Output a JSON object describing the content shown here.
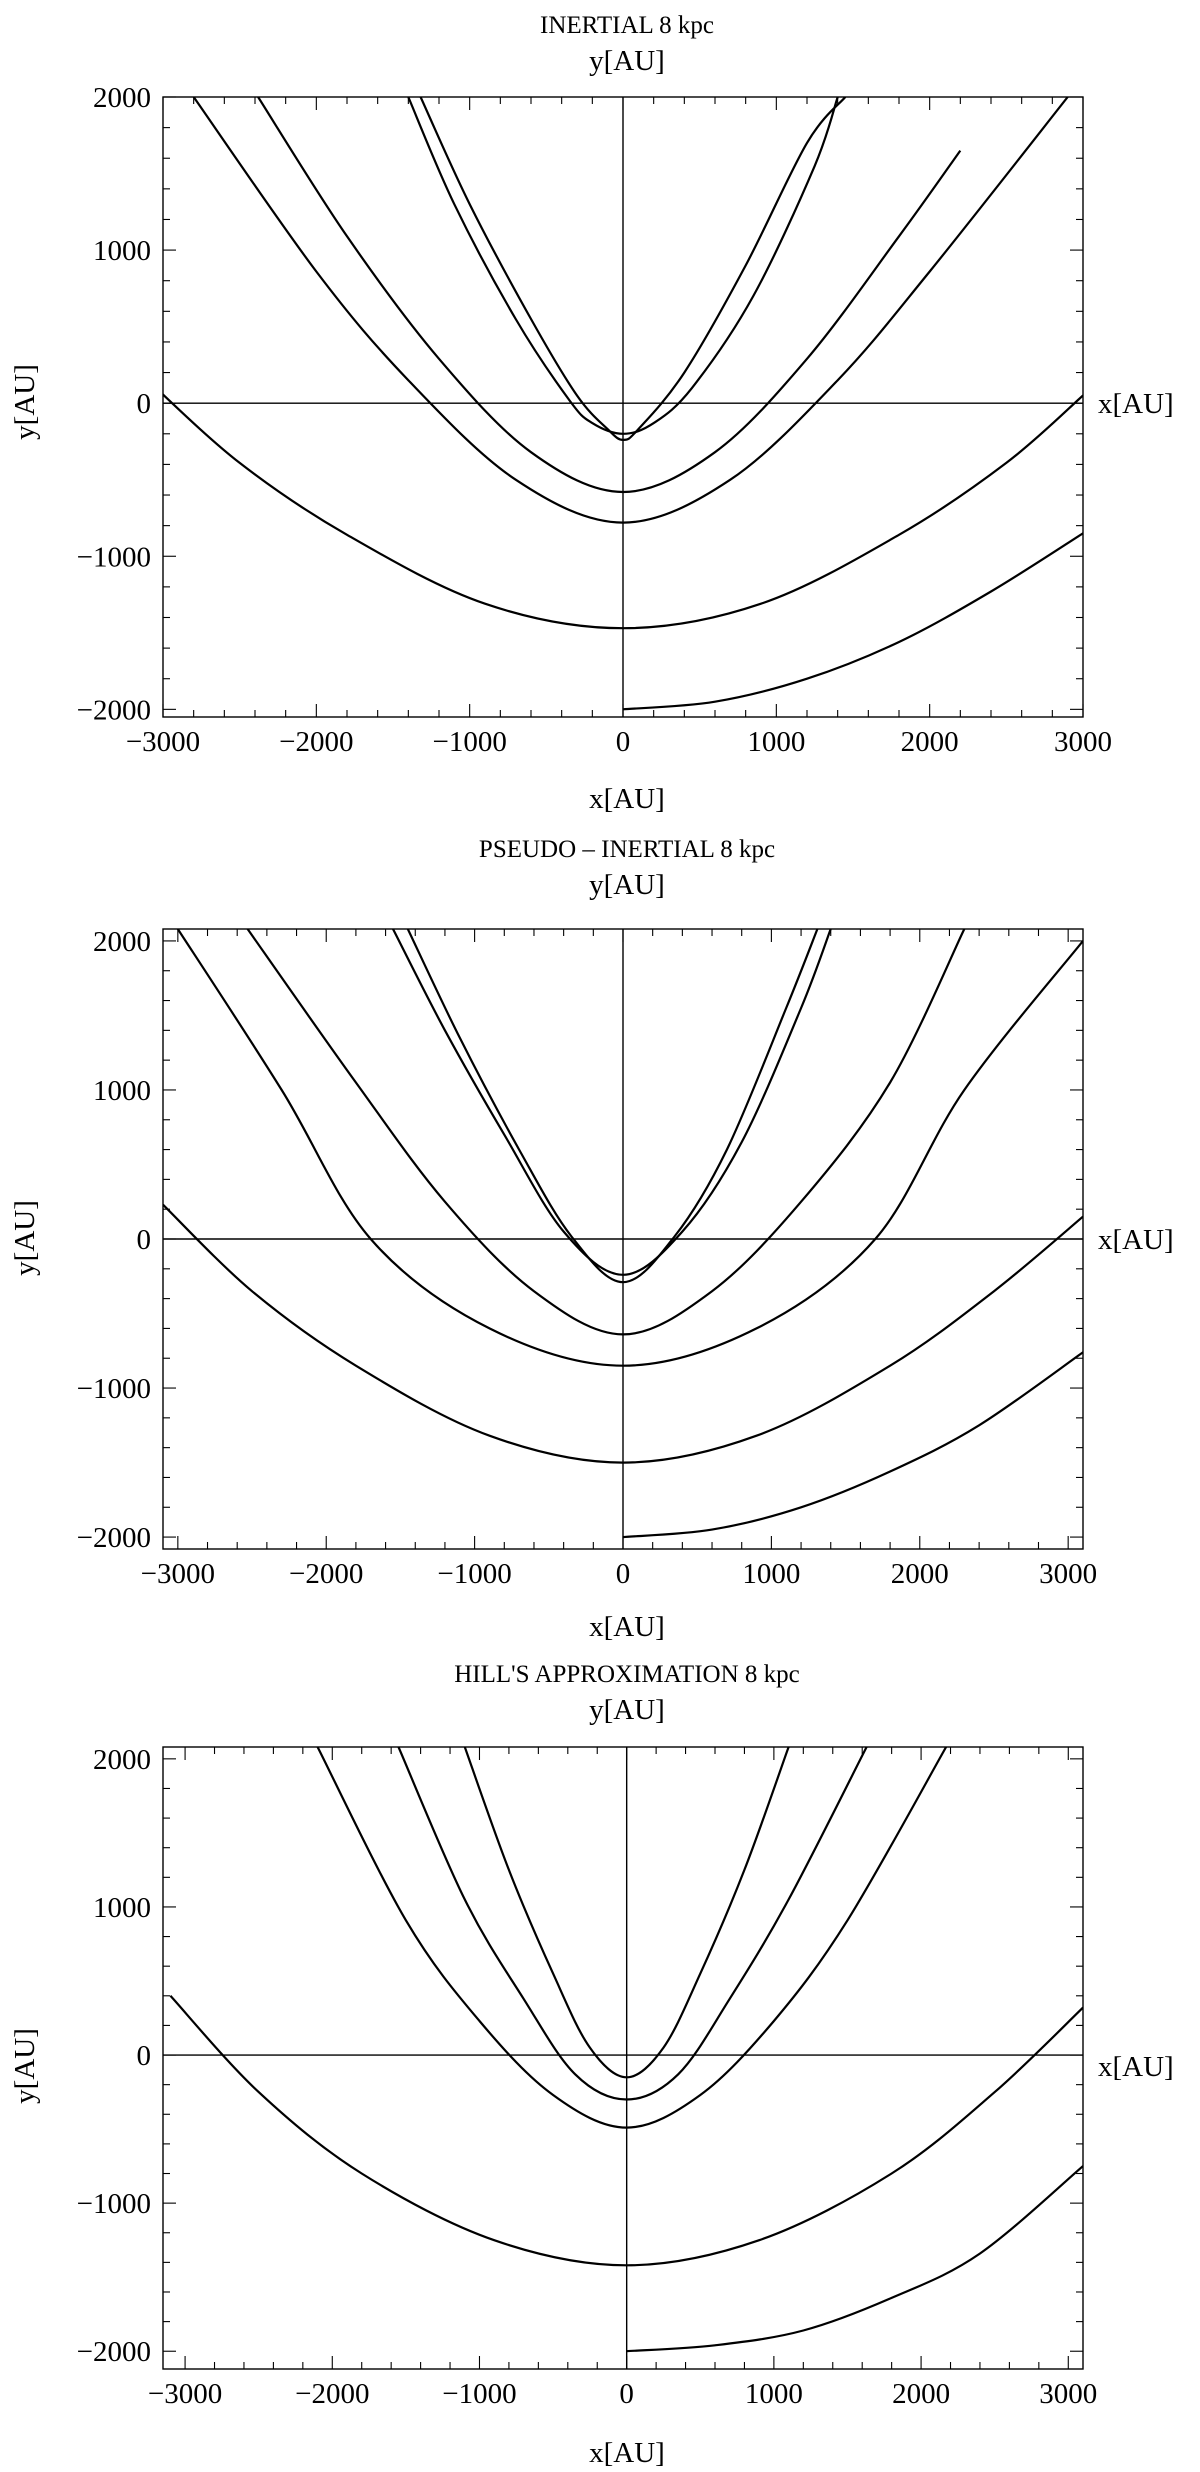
{
  "figure": {
    "charts": [
      {
        "title": "INERTIAL 8 kpc",
        "top_ylabel": "y[AU]",
        "side_ylabel": "y[AU]",
        "right_xlabel": "x[AU]",
        "bottom_xlabel": "x[AU]"
      },
      {
        "title": "PSEUDO – INERTIAL 8 kpc",
        "top_ylabel": "y[AU]",
        "side_ylabel": "y[AU]",
        "right_xlabel": "x[AU]",
        "bottom_xlabel": "x[AU]"
      },
      {
        "title": "HILL'S APPROXIMATION 8 kpc",
        "top_ylabel": "y[AU]",
        "side_ylabel": "y[AU]",
        "right_xlabel": "x[AU]",
        "bottom_xlabel": "x[AU]"
      }
    ]
  },
  "chart_data": [
    {
      "type": "line",
      "title": "INERTIAL 8 kpc",
      "xlabel": "x[AU]",
      "ylabel": "y[AU]",
      "xlim": [
        -3000,
        3000
      ],
      "ylim": [
        -2050,
        2000
      ],
      "xticks": [
        -3000,
        -2000,
        -1000,
        0,
        1000,
        2000,
        3000
      ],
      "yticks": [
        -2000,
        -1000,
        0,
        1000,
        2000
      ],
      "series": [
        {
          "x": [
            -1400,
            -1100,
            -700,
            -350,
            -200,
            0,
            200,
            450,
            850,
            1250,
            1400
          ],
          "y": [
            2000,
            1300,
            550,
            20,
            -130,
            -200,
            -130,
            100,
            700,
            1550,
            2000
          ]
        },
        {
          "x": [
            -1320,
            -1000,
            -600,
            -300,
            -100,
            0,
            100,
            400,
            800,
            1200,
            1450
          ],
          "y": [
            2000,
            1300,
            550,
            50,
            -170,
            -240,
            -170,
            200,
            900,
            1700,
            2000
          ]
        },
        {
          "x": [
            -2380,
            -1800,
            -1200,
            -600,
            0,
            600,
            1200,
            1800,
            2200
          ],
          "y": [
            2000,
            1090,
            290,
            -320,
            -580,
            -320,
            290,
            1090,
            1650
          ]
        },
        {
          "x": [
            -2800,
            -2000,
            -1400,
            -700,
            0,
            700,
            1400,
            2000,
            2900
          ],
          "y": [
            2000,
            860,
            150,
            -500,
            -780,
            -500,
            150,
            860,
            2000
          ]
        },
        {
          "x": [
            -3100,
            -2500,
            -1800,
            -900,
            0,
            900,
            1800,
            2500,
            3000
          ],
          "y": [
            150,
            -390,
            -860,
            -1310,
            -1470,
            -1310,
            -860,
            -390,
            50
          ]
        },
        {
          "x": [
            0,
            600,
            1200,
            1800,
            2400,
            3000
          ],
          "y": [
            -2000,
            -1950,
            -1800,
            -1560,
            -1230,
            -850
          ]
        }
      ]
    },
    {
      "type": "line",
      "title": "PSEUDO – INERTIAL 8 kpc",
      "xlabel": "x[AU]",
      "ylabel": "y[AU]",
      "xlim": [
        -3100,
        3100
      ],
      "ylim": [
        -2080,
        2080
      ],
      "xticks": [
        -3000,
        -2000,
        -1000,
        0,
        1000,
        2000,
        3000
      ],
      "yticks": [
        -2000,
        -1000,
        0,
        1000,
        2000
      ],
      "series": [
        {
          "x": [
            -1550,
            -1200,
            -800,
            -400,
            0,
            400,
            800,
            1200,
            1400
          ],
          "y": [
            2080,
            1400,
            700,
            50,
            -240,
            50,
            650,
            1550,
            2080
          ]
        },
        {
          "x": [
            -1450,
            -1100,
            -700,
            -350,
            0,
            350,
            700,
            1100,
            1310
          ],
          "y": [
            2080,
            1350,
            600,
            20,
            -290,
            20,
            600,
            1550,
            2080
          ]
        },
        {
          "x": [
            -2530,
            -1800,
            -1200,
            -600,
            0,
            600,
            1200,
            1800,
            2300
          ],
          "y": [
            2080,
            1050,
            250,
            -350,
            -640,
            -350,
            250,
            1050,
            2080
          ]
        },
        {
          "x": [
            -3000,
            -2300,
            -1700,
            -900,
            0,
            900,
            1700,
            2300,
            3100
          ],
          "y": [
            2080,
            1000,
            0,
            -600,
            -850,
            -600,
            0,
            1000,
            2000
          ]
        },
        {
          "x": [
            -3100,
            -2500,
            -1800,
            -900,
            0,
            900,
            1800,
            2500,
            3100
          ],
          "y": [
            230,
            -350,
            -850,
            -1320,
            -1500,
            -1320,
            -850,
            -350,
            150
          ]
        },
        {
          "x": [
            0,
            600,
            1200,
            1800,
            2400,
            3100
          ],
          "y": [
            -2000,
            -1950,
            -1800,
            -1560,
            -1250,
            -760
          ]
        }
      ]
    },
    {
      "type": "line",
      "title": "HILL'S APPROXIMATION 8 kpc",
      "xlabel": "x[AU]",
      "ylabel": "y[AU]",
      "xlim": [
        -3150,
        3100
      ],
      "ylim": [
        -2120,
        2080
      ],
      "xticks": [
        -3000,
        -2000,
        -1000,
        0,
        1000,
        2000,
        3000
      ],
      "yticks": [
        -2000,
        -1000,
        0,
        1000,
        2000
      ],
      "series": [
        {
          "x": [
            -1100,
            -800,
            -500,
            -250,
            0,
            250,
            500,
            800,
            1100
          ],
          "y": [
            2080,
            1250,
            550,
            50,
            -150,
            50,
            550,
            1250,
            2080
          ]
        },
        {
          "x": [
            -1550,
            -1100,
            -700,
            -350,
            0,
            350,
            700,
            1100,
            1630
          ],
          "y": [
            2080,
            1050,
            380,
            -130,
            -300,
            -130,
            380,
            1050,
            2080
          ]
        },
        {
          "x": [
            -2100,
            -1500,
            -1000,
            -500,
            0,
            500,
            1000,
            1500,
            2170
          ],
          "y": [
            2080,
            910,
            230,
            -270,
            -490,
            -270,
            230,
            910,
            2080
          ]
        },
        {
          "x": [
            -3100,
            -2500,
            -1800,
            -900,
            0,
            900,
            1800,
            2500,
            3100
          ],
          "y": [
            400,
            -250,
            -800,
            -1250,
            -1420,
            -1250,
            -800,
            -250,
            320
          ]
        },
        {
          "x": [
            0,
            600,
            1200,
            1800,
            2400,
            3100
          ],
          "y": [
            -2000,
            -1960,
            -1860,
            -1640,
            -1340,
            -750
          ]
        }
      ]
    }
  ]
}
